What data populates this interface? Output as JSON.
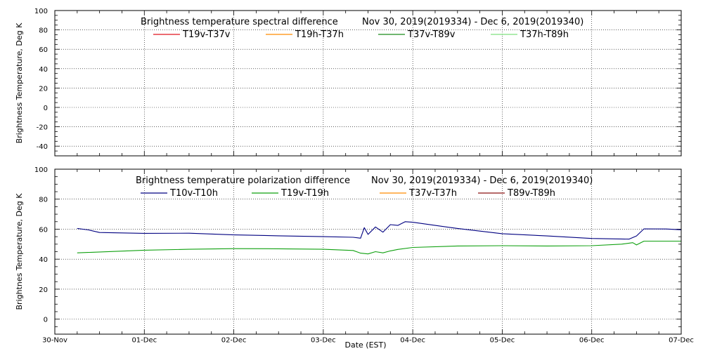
{
  "colors": {
    "red": "#e0141e",
    "orange": "#ff8c00",
    "dark_green": "#1a8c1a",
    "light_green": "#7fe07f",
    "navy": "#000080",
    "green": "#0fa00f",
    "dark_red": "#8b1010",
    "grid": "#000000"
  },
  "chart_data": [
    {
      "type": "line",
      "title": "Brightness temperature spectral difference",
      "date_range": "Nov 30, 2019(2019334) - Dec  6, 2019(2019340)",
      "ylabel": "Brightness Temperature, Deg K",
      "xlabel": "",
      "ylim": [
        -50,
        100
      ],
      "yticks": [
        -40,
        -20,
        0,
        20,
        40,
        60,
        80,
        100
      ],
      "xlim": [
        "2019-11-30",
        "2019-12-07"
      ],
      "grid": true,
      "legend_placement": "top",
      "series": [
        {
          "name": "T19v-T37v",
          "color_key": "red",
          "points": []
        },
        {
          "name": "T19h-T37h",
          "color_key": "orange",
          "points": []
        },
        {
          "name": "T37v-T89v",
          "color_key": "dark_green",
          "points": []
        },
        {
          "name": "T37h-T89h",
          "color_key": "light_green",
          "points": []
        }
      ]
    },
    {
      "type": "line",
      "title": "Brightness temperature polarization difference",
      "date_range": "Nov 30, 2019(2019334) - Dec  6, 2019(2019340)",
      "ylabel": "Brightnes Temperature, Deg K",
      "xlabel": "Date (EST)",
      "ylim": [
        -10,
        100
      ],
      "yticks": [
        0,
        20,
        40,
        60,
        80,
        100
      ],
      "xlim": [
        "2019-11-30",
        "2019-12-07"
      ],
      "grid": true,
      "legend_placement": "top",
      "series": [
        {
          "name": "T10v-T10h",
          "color_key": "navy",
          "points": [
            [
              "2019-11-30T06:00",
              60.5
            ],
            [
              "2019-11-30T09:00",
              59.5
            ],
            [
              "2019-11-30T12:00",
              57.8
            ],
            [
              "2019-12-01T00:00",
              57.2
            ],
            [
              "2019-12-01T12:00",
              57.3
            ],
            [
              "2019-12-02T00:00",
              56.2
            ],
            [
              "2019-12-02T12:00",
              55.6
            ],
            [
              "2019-12-03T00:00",
              55.0
            ],
            [
              "2019-12-03T08:00",
              54.6
            ],
            [
              "2019-12-03T10:00",
              54.0
            ],
            [
              "2019-12-03T11:00",
              61.0
            ],
            [
              "2019-12-03T12:00",
              56.5
            ],
            [
              "2019-12-03T14:00",
              61.5
            ],
            [
              "2019-12-03T16:00",
              58.0
            ],
            [
              "2019-12-03T18:00",
              63.0
            ],
            [
              "2019-12-03T20:00",
              62.5
            ],
            [
              "2019-12-03T22:00",
              65.0
            ],
            [
              "2019-12-04T00:00",
              64.6
            ],
            [
              "2019-12-04T06:00",
              62.5
            ],
            [
              "2019-12-04T12:00",
              60.5
            ],
            [
              "2019-12-05T00:00",
              57.0
            ],
            [
              "2019-12-05T12:00",
              55.5
            ],
            [
              "2019-12-06T00:00",
              53.8
            ],
            [
              "2019-12-06T10:00",
              53.4
            ],
            [
              "2019-12-06T12:00",
              55.5
            ],
            [
              "2019-12-06T14:00",
              60.2
            ],
            [
              "2019-12-06T20:00",
              60.1
            ],
            [
              "2019-12-07T00:00",
              59.6
            ]
          ]
        },
        {
          "name": "T19v-T19h",
          "color_key": "green",
          "points": [
            [
              "2019-11-30T06:00",
              44.2
            ],
            [
              "2019-12-01T00:00",
              46.0
            ],
            [
              "2019-12-01T12:00",
              46.6
            ],
            [
              "2019-12-02T00:00",
              47.0
            ],
            [
              "2019-12-02T12:00",
              46.9
            ],
            [
              "2019-12-03T00:00",
              46.6
            ],
            [
              "2019-12-03T08:00",
              45.8
            ],
            [
              "2019-12-03T10:00",
              44.0
            ],
            [
              "2019-12-03T12:00",
              43.5
            ],
            [
              "2019-12-03T14:00",
              45.0
            ],
            [
              "2019-12-03T16:00",
              44.2
            ],
            [
              "2019-12-03T18:00",
              45.5
            ],
            [
              "2019-12-03T20:00",
              46.5
            ],
            [
              "2019-12-04T00:00",
              47.8
            ],
            [
              "2019-12-04T12:00",
              48.8
            ],
            [
              "2019-12-05T00:00",
              49.0
            ],
            [
              "2019-12-05T12:00",
              48.8
            ],
            [
              "2019-12-06T00:00",
              49.0
            ],
            [
              "2019-12-06T08:00",
              50.0
            ],
            [
              "2019-12-06T11:00",
              51.0
            ],
            [
              "2019-12-06T12:00",
              49.5
            ],
            [
              "2019-12-06T14:00",
              52.0
            ],
            [
              "2019-12-07T00:00",
              52.0
            ]
          ]
        },
        {
          "name": "T37v-T37h",
          "color_key": "orange",
          "points": []
        },
        {
          "name": "T89v-T89h",
          "color_key": "dark_red",
          "points": []
        }
      ],
      "xticks": [
        {
          "date": "2019-11-30",
          "label": "30-Nov"
        },
        {
          "date": "2019-12-01",
          "label": "01-Dec"
        },
        {
          "date": "2019-12-02",
          "label": "02-Dec"
        },
        {
          "date": "2019-12-03",
          "label": "03-Dec"
        },
        {
          "date": "2019-12-04",
          "label": "04-Dec"
        },
        {
          "date": "2019-12-05",
          "label": "05-Dec"
        },
        {
          "date": "2019-12-06",
          "label": "06-Dec"
        },
        {
          "date": "2019-12-07",
          "label": "07-Dec"
        }
      ]
    }
  ]
}
